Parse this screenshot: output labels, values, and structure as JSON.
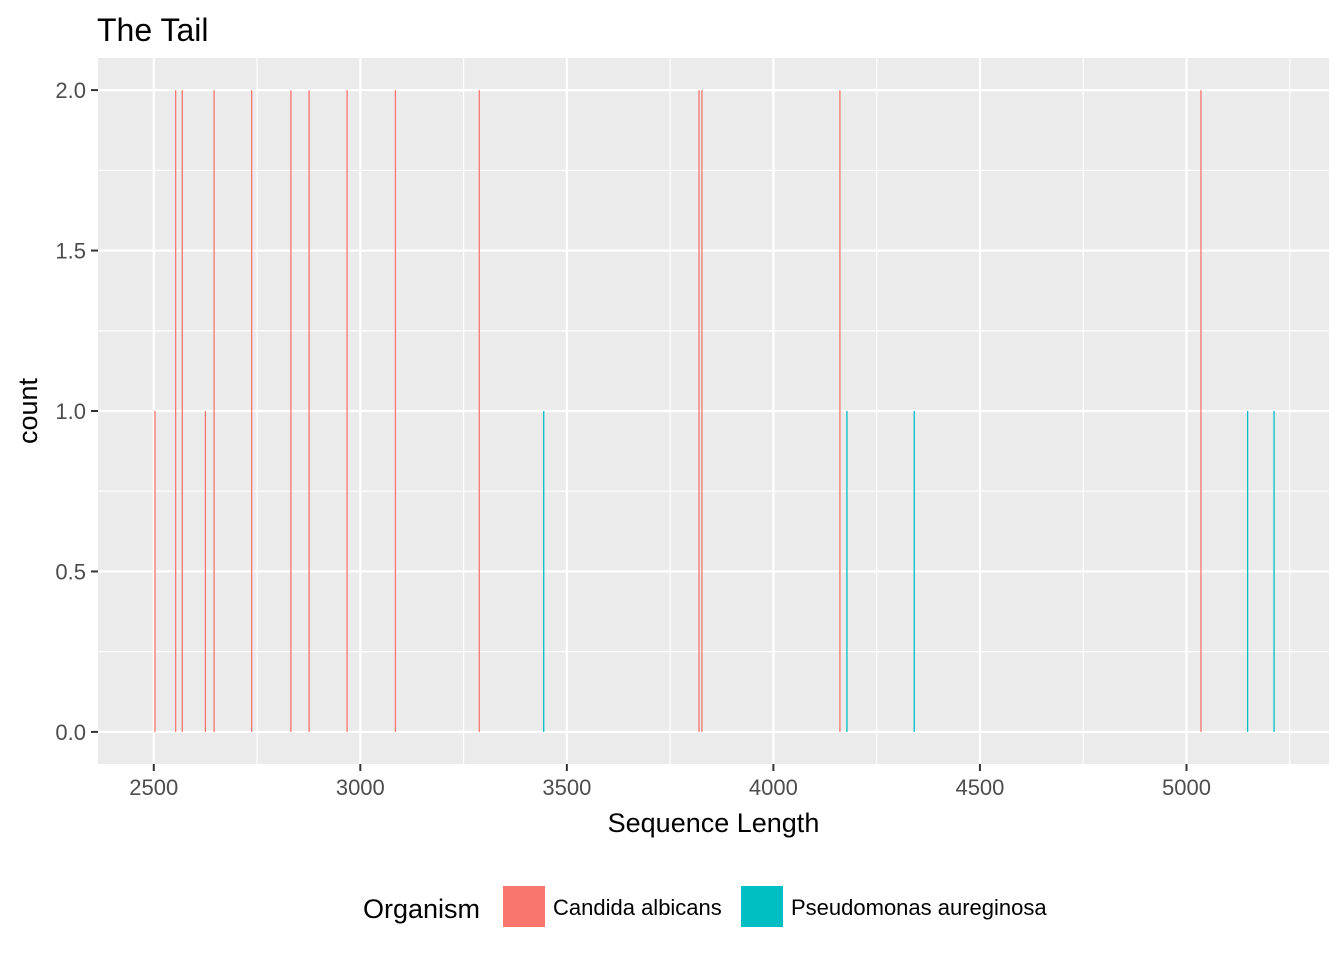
{
  "chart_data": {
    "type": "bar",
    "title": "The Tail",
    "xlabel": "Sequence Length",
    "ylabel": "count",
    "xlim": [
      2365,
      5345
    ],
    "ylim": [
      -0.1,
      2.1
    ],
    "x_ticks": [
      2500,
      3000,
      3500,
      4000,
      4500,
      5000
    ],
    "x_tick_labels": [
      "2500",
      "3000",
      "3500",
      "4000",
      "4500",
      "5000"
    ],
    "y_ticks": [
      0.0,
      0.5,
      1.0,
      1.5,
      2.0
    ],
    "y_tick_labels": [
      "0.0",
      "0.5",
      "1.0",
      "1.5",
      "2.0"
    ],
    "grid": true,
    "legend": {
      "title": "Organism",
      "position": "bottom"
    },
    "series": [
      {
        "name": "Candida albicans",
        "color": "#F8766D",
        "points": [
          {
            "x": 2503,
            "y": 1
          },
          {
            "x": 2553,
            "y": 2
          },
          {
            "x": 2569,
            "y": 2
          },
          {
            "x": 2625,
            "y": 1
          },
          {
            "x": 2646,
            "y": 2
          },
          {
            "x": 2737,
            "y": 2
          },
          {
            "x": 2832,
            "y": 2
          },
          {
            "x": 2876,
            "y": 2
          },
          {
            "x": 2968,
            "y": 2
          },
          {
            "x": 3085,
            "y": 2
          },
          {
            "x": 3288,
            "y": 2
          },
          {
            "x": 3820,
            "y": 2
          },
          {
            "x": 3827,
            "y": 2
          },
          {
            "x": 4161,
            "y": 2
          },
          {
            "x": 5035,
            "y": 2
          }
        ]
      },
      {
        "name": "Pseudomonas aureginosa",
        "color": "#00BFC4",
        "points": [
          {
            "x": 3444,
            "y": 1
          },
          {
            "x": 4178,
            "y": 1
          },
          {
            "x": 4341,
            "y": 1
          },
          {
            "x": 5148,
            "y": 1
          },
          {
            "x": 5212,
            "y": 1
          }
        ]
      }
    ]
  }
}
